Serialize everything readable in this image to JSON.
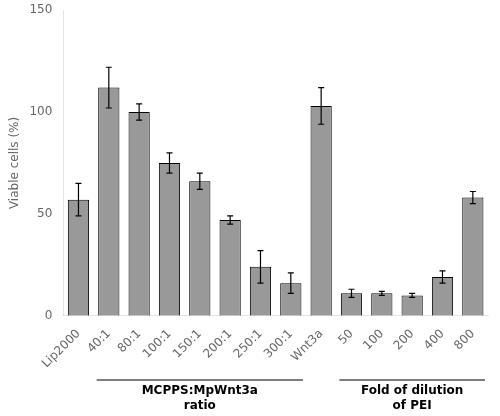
{
  "chart_data": {
    "type": "bar",
    "categories": [
      "Lip2000",
      "40:1",
      "80:1",
      "100:1",
      "150:1",
      "200:1",
      "250:1",
      "300:1",
      "Wnt3a",
      "50",
      "100",
      "200",
      "400",
      "800"
    ],
    "values": [
      57,
      112,
      100,
      75,
      66,
      47,
      24,
      16,
      103,
      11,
      11,
      10,
      19,
      58
    ],
    "errors": [
      8,
      10,
      4,
      5,
      4,
      2,
      8,
      5,
      9,
      2,
      1,
      1,
      3,
      3
    ],
    "color": "#999999",
    "ylabel": "Viable cells (%)",
    "ylim": [
      0,
      150
    ],
    "yticks": [
      0,
      50,
      100,
      150
    ],
    "grid": false,
    "groups": [
      {
        "start": "40:1",
        "end": "300:1",
        "labels": [
          "MCPPS:MpWnt3a",
          "ratio"
        ]
      },
      {
        "start": "50",
        "end": "800",
        "labels": [
          "Fold of dilution",
          "of PEI"
        ]
      }
    ]
  }
}
